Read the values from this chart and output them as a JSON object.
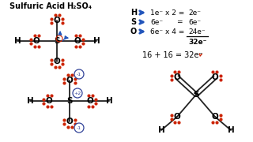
{
  "bg_color": "#ffffff",
  "dot_color": "#cc2200",
  "arrow_color": "#2255bb",
  "curl_color": "#cc2200",
  "bond_color": "#222222",
  "title1": "Sulfuric Acid",
  "title2": "H₂SO₄",
  "row1": [
    "H",
    "1e⁻ x 2 =",
    "2e⁻"
  ],
  "row2": [
    "S",
    "6e⁻       =",
    "6e⁻"
  ],
  "row3": [
    "O",
    "6e⁻ x 4 =",
    "24e⁻"
  ],
  "row4": "32e⁻",
  "sum_line": "16 + 16 = 32e⁻"
}
